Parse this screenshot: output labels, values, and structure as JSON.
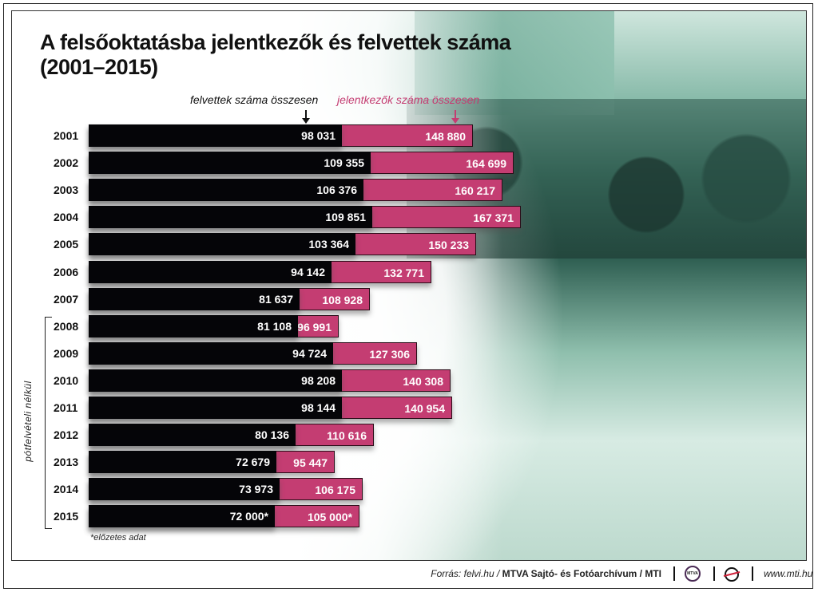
{
  "title": {
    "line1": "A felsőoktatásba jelentkezők és felvettek száma",
    "line2": "(2001–2015)"
  },
  "legend": {
    "admitted": "felvettek száma összesen",
    "applicants": "jelentkezők száma összesen"
  },
  "bracket_label": "pótfelvételi nélkül",
  "footnote": "*előzetes adat",
  "footer": {
    "source_prefix": "Forrás: felvi.hu / ",
    "source_bold": "MTVA Sajtó- és Fotóarchívum / MTI",
    "mtva_logo": "MTVA",
    "url": "www.mti.hu"
  },
  "colors": {
    "admitted": "#050508",
    "applicants": "#c43d72",
    "photo_tint": "#4d8d79"
  },
  "rows": [
    {
      "year": "2001",
      "admitted_label": "98 031",
      "applicants_label": "148 880"
    },
    {
      "year": "2002",
      "admitted_label": "109 355",
      "applicants_label": "164 699"
    },
    {
      "year": "2003",
      "admitted_label": "106 376",
      "applicants_label": "160 217"
    },
    {
      "year": "2004",
      "admitted_label": "109 851",
      "applicants_label": "167 371"
    },
    {
      "year": "2005",
      "admitted_label": "103 364",
      "applicants_label": "150 233"
    },
    {
      "year": "2006",
      "admitted_label": "94 142",
      "applicants_label": "132 771"
    },
    {
      "year": "2007",
      "admitted_label": "81 637",
      "applicants_label": "108 928"
    },
    {
      "year": "2008",
      "admitted_label": "81 108",
      "applicants_label": "96 991"
    },
    {
      "year": "2009",
      "admitted_label": "94 724",
      "applicants_label": "127 306"
    },
    {
      "year": "2010",
      "admitted_label": "98 208",
      "applicants_label": "140 308"
    },
    {
      "year": "2011",
      "admitted_label": "98 144",
      "applicants_label": "140 954"
    },
    {
      "year": "2012",
      "admitted_label": "80 136",
      "applicants_label": "110 616"
    },
    {
      "year": "2013",
      "admitted_label": "72 679",
      "applicants_label": "95 447"
    },
    {
      "year": "2014",
      "admitted_label": "73 973",
      "applicants_label": "106 175"
    },
    {
      "year": "2015",
      "admitted_label": "72 000*",
      "applicants_label": "105 000*"
    }
  ],
  "chart_data": {
    "type": "bar",
    "orientation": "horizontal",
    "title": "A felsőoktatásba jelentkezők és felvettek száma (2001–2015)",
    "categories": [
      "2001",
      "2002",
      "2003",
      "2004",
      "2005",
      "2006",
      "2007",
      "2008",
      "2009",
      "2010",
      "2011",
      "2012",
      "2013",
      "2014",
      "2015"
    ],
    "series": [
      {
        "name": "felvettek száma összesen",
        "color": "#050508",
        "values": [
          98031,
          109355,
          106376,
          109851,
          103364,
          94142,
          81637,
          81108,
          94724,
          98208,
          98144,
          80136,
          72679,
          73973,
          72000
        ]
      },
      {
        "name": "jelentkezők száma összesen",
        "color": "#c43d72",
        "values": [
          148880,
          164699,
          160217,
          167371,
          150233,
          132771,
          108928,
          96991,
          127306,
          140308,
          140954,
          110616,
          95447,
          106175,
          105000
        ]
      }
    ],
    "annotations": [
      "pótfelvételi nélkül (2008–2015)",
      "*előzetes adat (2015)"
    ],
    "xlabel": "",
    "ylabel": "",
    "grid": false,
    "legend_position": "top",
    "overlapping": true
  }
}
